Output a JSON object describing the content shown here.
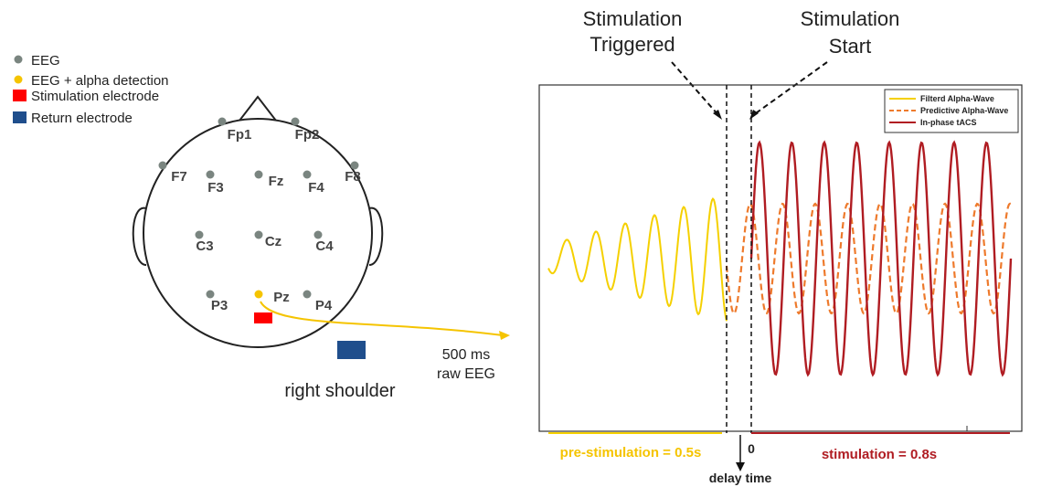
{
  "legend": {
    "items": [
      "EEG",
      "EEG + alpha detection",
      "Stimulation electrode",
      "Return electrode"
    ]
  },
  "head": {
    "electrodes": [
      "Fp1",
      "Fp2",
      "F7",
      "F8",
      "F3",
      "Fz",
      "F4",
      "C3",
      "Cz",
      "C4",
      "P3",
      "Pz",
      "P4"
    ],
    "shoulder_label": "right shoulder",
    "arrow_label": [
      "500 ms",
      "raw EEG"
    ]
  },
  "plot": {
    "trigger_label": [
      "Stimulation",
      "Triggered"
    ],
    "start_label": [
      "Stimulation",
      "Start"
    ],
    "legend": [
      "Filterd Alpha-Wave",
      "Predictive Alpha-Wave",
      "In-phase tACS"
    ],
    "pre_label": "pre-stimulation = 0.5s",
    "zero_label": "0",
    "stim_label": "stimulation = 0.8s",
    "delay_label": "delay time"
  }
}
